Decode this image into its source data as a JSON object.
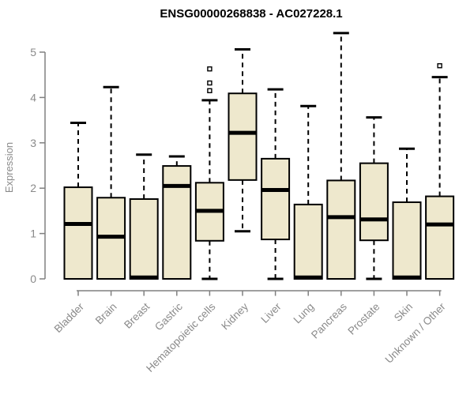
{
  "chart_data": {
    "type": "box",
    "title": "ENSG00000268838 - AC027228.1",
    "xlabel": "",
    "ylabel": "Expression",
    "ylim": [
      0,
      5
    ],
    "yticks": [
      0,
      1,
      2,
      3,
      4,
      5
    ],
    "grid": false,
    "legend": false,
    "categories": [
      "Bladder",
      "Brain",
      "Breast",
      "Gastric",
      "Hematopoietic cells",
      "Kidney",
      "Liver",
      "Lung",
      "Pancreas",
      "Prostate",
      "Skin",
      "Unknown / Other"
    ],
    "boxes": [
      {
        "category": "Bladder",
        "whisker_low": 0,
        "q1": 0,
        "median": 1.21,
        "q3": 2.02,
        "whisker_high": 3.44,
        "outliers": []
      },
      {
        "category": "Brain",
        "whisker_low": 0,
        "q1": 0,
        "median": 0.93,
        "q3": 1.79,
        "whisker_high": 4.23,
        "outliers": []
      },
      {
        "category": "Breast",
        "whisker_low": 0,
        "q1": 0,
        "median": 0.03,
        "q3": 1.76,
        "whisker_high": 2.74,
        "outliers": []
      },
      {
        "category": "Gastric",
        "whisker_low": 0,
        "q1": 0,
        "median": 2.05,
        "q3": 2.49,
        "whisker_high": 2.7,
        "outliers": []
      },
      {
        "category": "Hematopoietic cells",
        "whisker_low": 0,
        "q1": 0.84,
        "median": 1.5,
        "q3": 2.12,
        "whisker_high": 3.94,
        "outliers": [
          4.15,
          4.32,
          4.63
        ]
      },
      {
        "category": "Kidney",
        "whisker_low": 1.05,
        "q1": 2.18,
        "median": 3.22,
        "q3": 4.09,
        "whisker_high": 5.06,
        "outliers": []
      },
      {
        "category": "Liver",
        "whisker_low": 0,
        "q1": 0.87,
        "median": 1.96,
        "q3": 2.65,
        "whisker_high": 4.18,
        "outliers": []
      },
      {
        "category": "Lung",
        "whisker_low": 0,
        "q1": 0,
        "median": 0.03,
        "q3": 1.64,
        "whisker_high": 3.81,
        "outliers": []
      },
      {
        "category": "Pancreas",
        "whisker_low": 0,
        "q1": 0,
        "median": 1.36,
        "q3": 2.17,
        "whisker_high": 5.42,
        "outliers": []
      },
      {
        "category": "Prostate",
        "whisker_low": 0,
        "q1": 0.85,
        "median": 1.31,
        "q3": 2.55,
        "whisker_high": 3.56,
        "outliers": []
      },
      {
        "category": "Skin",
        "whisker_low": 0,
        "q1": 0,
        "median": 0.03,
        "q3": 1.69,
        "whisker_high": 2.87,
        "outliers": []
      },
      {
        "category": "Unknown / Other",
        "whisker_low": 0,
        "q1": 0,
        "median": 1.2,
        "q3": 1.82,
        "whisker_high": 4.45,
        "outliers": [
          4.7
        ]
      }
    ],
    "colors": {
      "box_fill": "#EEE8CD",
      "box_stroke": "#000000",
      "median_line": "#000000",
      "whisker": "#000000",
      "outlier_stroke": "#000000",
      "outlier_fill": "#FFFFFF",
      "axis_line": "#808080",
      "axis_text": "#8A8A8A",
      "title_text": "#000000",
      "background": "#FFFFFF"
    }
  }
}
